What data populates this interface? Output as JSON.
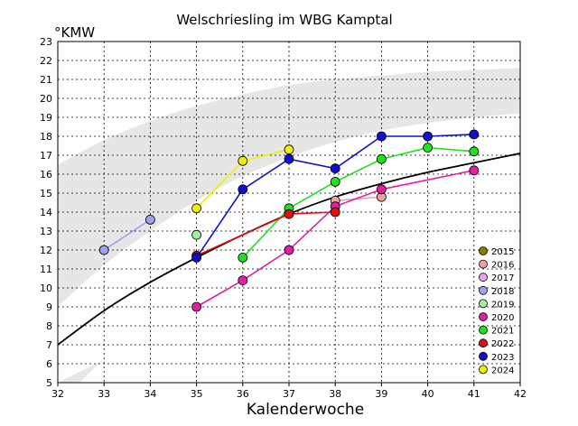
{
  "chart_data": {
    "type": "line",
    "title": "Welschriesling im WBG Kamptal",
    "xlabel": "Kalenderwoche",
    "ylabel": "°KMW",
    "xlim": [
      32,
      42
    ],
    "ylim": [
      5,
      23
    ],
    "xticks": [
      32,
      33,
      34,
      35,
      36,
      37,
      38,
      39,
      40,
      41,
      42
    ],
    "yticks": [
      5,
      6,
      7,
      8,
      9,
      10,
      11,
      12,
      13,
      14,
      15,
      16,
      17,
      18,
      19,
      20,
      21,
      22,
      23
    ],
    "grid": true,
    "legend_position": "bottom-right",
    "reference_curve": {
      "color": "#000000",
      "x": [
        32,
        33,
        34,
        35,
        36,
        37,
        38,
        39,
        40,
        41,
        42
      ],
      "y": [
        7.0,
        8.8,
        10.3,
        11.6,
        12.8,
        13.9,
        14.8,
        15.5,
        16.1,
        16.6,
        17.1
      ]
    },
    "bands": [
      {
        "name": "outer",
        "color": "#e6e6e6",
        "upper": [
          [
            32,
            16.5
          ],
          [
            33,
            17.8
          ],
          [
            34,
            18.8
          ],
          [
            35,
            19.6
          ],
          [
            36,
            20.2
          ],
          [
            37,
            20.7
          ],
          [
            38,
            21.0
          ],
          [
            39,
            21.2
          ],
          [
            40,
            21.4
          ],
          [
            41,
            21.5
          ],
          [
            42,
            21.6
          ]
        ],
        "lower": [
          [
            32,
            3.8
          ],
          [
            33,
            6.2
          ],
          [
            34,
            7.4
          ],
          [
            35,
            8.4
          ],
          [
            36,
            9.4
          ],
          [
            37,
            10.3
          ],
          [
            38,
            11.2
          ],
          [
            39,
            12.0
          ],
          [
            40,
            12.8
          ],
          [
            41,
            13.5
          ],
          [
            42,
            14.2
          ]
        ]
      },
      {
        "name": "inner",
        "color": "#ffffff",
        "upper": [
          [
            32,
            9.0
          ],
          [
            33,
            11.2
          ],
          [
            34,
            13.0
          ],
          [
            35,
            14.6
          ],
          [
            36,
            15.9
          ],
          [
            37,
            16.9
          ],
          [
            38,
            17.7
          ],
          [
            39,
            18.3
          ],
          [
            40,
            18.7
          ],
          [
            41,
            19.0
          ],
          [
            42,
            19.2
          ]
        ],
        "lower": [
          [
            32,
            5.0
          ],
          [
            33,
            6.2
          ],
          [
            34,
            7.4
          ],
          [
            35,
            8.4
          ],
          [
            36,
            9.4
          ],
          [
            37,
            10.3
          ],
          [
            38,
            11.2
          ],
          [
            39,
            12.0
          ],
          [
            40,
            12.8
          ],
          [
            41,
            13.5
          ],
          [
            42,
            14.2
          ]
        ]
      }
    ],
    "series": [
      {
        "name": "2015",
        "color": "#808000",
        "x": [],
        "y": []
      },
      {
        "name": "2016",
        "color": "#f0a0a0",
        "x": [
          38,
          39
        ],
        "y": [
          14.6,
          14.8
        ]
      },
      {
        "name": "2017",
        "color": "#f0a0f0",
        "x": [],
        "y": []
      },
      {
        "name": "2018",
        "color": "#a0a0f0",
        "x": [
          33,
          34
        ],
        "y": [
          12.0,
          13.6
        ]
      },
      {
        "name": "2019",
        "color": "#a0f0a0",
        "x": [
          35
        ],
        "y": [
          12.8
        ]
      },
      {
        "name": "2020",
        "color": "#e020a0",
        "x": [
          35,
          36,
          37,
          38,
          39,
          41
        ],
        "y": [
          9.0,
          10.4,
          12.0,
          14.3,
          15.2,
          16.2
        ]
      },
      {
        "name": "2021",
        "color": "#20e020",
        "x": [
          36,
          37,
          38,
          39,
          40,
          41
        ],
        "y": [
          11.6,
          14.2,
          15.6,
          16.8,
          17.4,
          17.2
        ]
      },
      {
        "name": "2022",
        "color": "#e01010",
        "x": [
          35,
          37,
          38
        ],
        "y": [
          11.7,
          13.9,
          14.0
        ]
      },
      {
        "name": "2023",
        "color": "#1010d0",
        "x": [
          35,
          36,
          37,
          38,
          39,
          40,
          41
        ],
        "y": [
          11.6,
          15.2,
          16.8,
          16.3,
          18.0,
          18.0,
          18.1
        ]
      },
      {
        "name": "2024",
        "color": "#f0f000",
        "x": [
          35,
          36,
          37
        ],
        "y": [
          14.2,
          16.7,
          17.3
        ]
      }
    ]
  }
}
